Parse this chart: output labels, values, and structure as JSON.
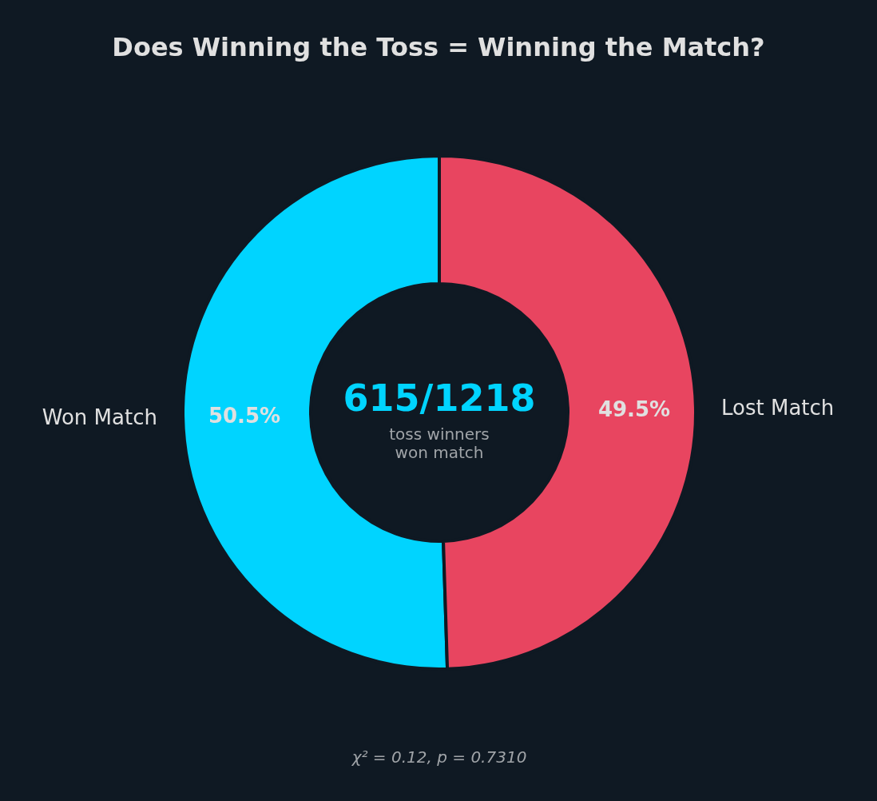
{
  "chart_data": {
    "type": "donut",
    "title": "Does Winning the Toss = Winning the Match?",
    "categories": [
      "Won Match",
      "Lost Match"
    ],
    "values": [
      50.5,
      49.5
    ],
    "colors": [
      "#00d4ff",
      "#e84560"
    ],
    "value_labels": [
      "50.5%",
      "49.5%"
    ],
    "annotations": [
      "615/1218",
      "toss winners\nwon match",
      "χ² = 0.12, p = 0.7310"
    ]
  }
}
